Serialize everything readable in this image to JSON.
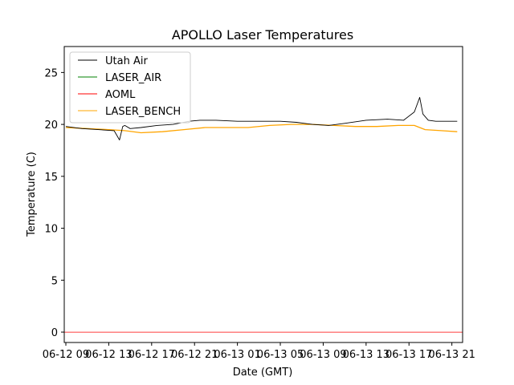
{
  "chart_data": {
    "type": "line",
    "title": "APOLLO Laser Temperatures",
    "xlabel": "Date (GMT)",
    "ylabel": "Temperature (C)",
    "x_ticks": [
      "06-12 09",
      "06-12 13",
      "06-12 17",
      "06-12 21",
      "06-13 01",
      "06-13 05",
      "06-13 09",
      "06-13 13",
      "06-13 17",
      "06-13 21"
    ],
    "ylim": [
      -1,
      27.5
    ],
    "y_ticks": [
      0,
      5,
      10,
      15,
      20,
      25
    ],
    "grid": false,
    "legend_position": "top-left",
    "colors": {
      "utah_air": "#000000",
      "laser_air": "#008000",
      "aoml": "#ff0000",
      "laser_bench": "#ffa500"
    },
    "series": [
      {
        "name": "Utah Air",
        "color": "#000000",
        "x": [
          9.0,
          10.5,
          12.0,
          13.5,
          14.0,
          14.3,
          14.5,
          15.0,
          16.0,
          17.5,
          19.0,
          20.5,
          21.5,
          23.0,
          25.0,
          27.0,
          29.0,
          30.5,
          32.0,
          33.5,
          35.0,
          37.0,
          39.0,
          40.5,
          41.5,
          42.0,
          42.3,
          42.8,
          43.5,
          44.5,
          45.5
        ],
        "values": [
          19.8,
          19.6,
          19.5,
          19.4,
          18.5,
          19.8,
          19.9,
          19.6,
          19.7,
          19.9,
          20.0,
          20.3,
          20.4,
          20.4,
          20.3,
          20.3,
          20.3,
          20.2,
          20.0,
          19.9,
          20.1,
          20.4,
          20.5,
          20.4,
          21.2,
          22.6,
          21.0,
          20.4,
          20.3,
          20.3,
          20.3
        ]
      },
      {
        "name": "LASER_AIR",
        "color": "#008000",
        "x": [],
        "values": []
      },
      {
        "name": "AOML",
        "color": "#ff0000",
        "x": [
          8.0,
          46.0
        ],
        "values": [
          0.0,
          0.0
        ]
      },
      {
        "name": "LASER_BENCH",
        "color": "#ffa500",
        "x": [
          9.0,
          11.0,
          13.0,
          14.5,
          16.0,
          18.0,
          20.0,
          22.0,
          24.0,
          26.0,
          28.0,
          30.0,
          32.0,
          34.0,
          36.0,
          38.0,
          40.0,
          41.5,
          42.5,
          44.0,
          45.5
        ],
        "values": [
          19.7,
          19.6,
          19.5,
          19.4,
          19.2,
          19.3,
          19.5,
          19.7,
          19.7,
          19.7,
          19.9,
          20.0,
          20.0,
          19.9,
          19.8,
          19.8,
          19.9,
          19.9,
          19.5,
          19.4,
          19.3
        ]
      }
    ]
  }
}
